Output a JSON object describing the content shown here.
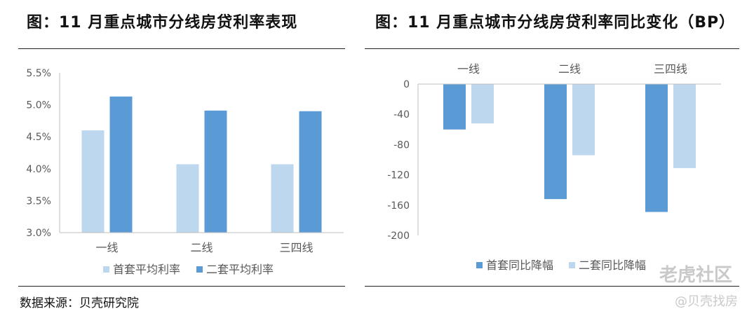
{
  "left_panel": {
    "title": "图：11 月重点城市分线房贷利率表现"
  },
  "right_panel": {
    "title": "图：11 月重点城市分线房贷利率同比变化（BP）"
  },
  "source": "数据来源：贝壳研究院",
  "watermark": {
    "brand": "老虎社区",
    "handle": "@贝壳找房"
  },
  "colors": {
    "dark_series": "#5b9bd5",
    "light_series": "#bdd7ee",
    "axis": "#bfbfbf",
    "text": "#595959"
  },
  "chart_data": [
    {
      "type": "bar",
      "categories": [
        "一线",
        "二线",
        "三四线"
      ],
      "series": [
        {
          "name": "首套平均利率",
          "values": [
            4.6,
            4.07,
            4.07
          ],
          "color": "#bdd7ee"
        },
        {
          "name": "二套平均利率",
          "values": [
            5.13,
            4.91,
            4.9
          ],
          "color": "#5b9bd5"
        }
      ],
      "ylim": [
        3.0,
        5.5
      ],
      "yticks": [
        "3.0%",
        "3.5%",
        "4.0%",
        "4.5%",
        "5.0%",
        "5.5%"
      ],
      "ytick_values": [
        3.0,
        3.5,
        4.0,
        4.5,
        5.0,
        5.5
      ],
      "legend_position": "bottom",
      "grid": false
    },
    {
      "type": "bar",
      "categories": [
        "一线",
        "二线",
        "三四线"
      ],
      "series": [
        {
          "name": "首套同比降幅",
          "values": [
            -60,
            -152,
            -169
          ],
          "color": "#5b9bd5"
        },
        {
          "name": "二套同比降幅",
          "values": [
            -52,
            -94,
            -111
          ],
          "color": "#bdd7ee"
        }
      ],
      "ylim": [
        -200,
        0
      ],
      "yticks": [
        "0",
        "-40",
        "-80",
        "-120",
        "-160",
        "-200"
      ],
      "ytick_values": [
        0,
        -40,
        -80,
        -120,
        -160,
        -200
      ],
      "category_labels_position": "top",
      "legend_position": "bottom",
      "grid": false
    }
  ]
}
